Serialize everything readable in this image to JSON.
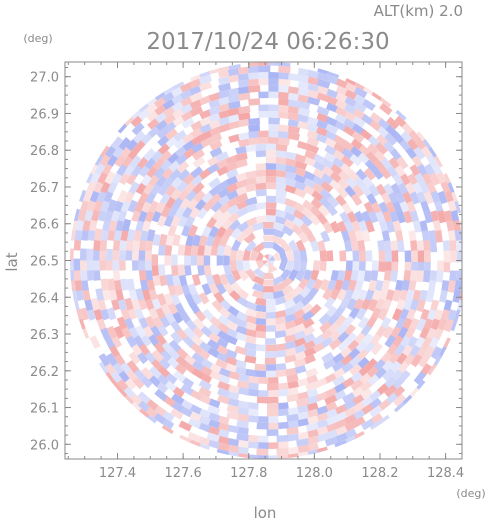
{
  "header": {
    "altitude_label": "ALT(km)  2.0",
    "timestamp": "2017/10/24 06:26:30"
  },
  "chart_data": {
    "type": "heatmap",
    "title": "",
    "xlabel": "lon",
    "ylabel": "lat",
    "x_unit": "(deg)",
    "y_unit": "(deg)",
    "xlim": [
      127.24,
      128.45
    ],
    "ylim": [
      25.96,
      27.04
    ],
    "x_ticks": [
      127.4,
      127.6,
      127.8,
      128.0,
      128.2,
      128.4
    ],
    "x_tick_labels": [
      "127.4",
      "127.6",
      "127.8",
      "128.0",
      "128.2",
      "128.4"
    ],
    "y_ticks": [
      26.0,
      26.1,
      26.2,
      26.3,
      26.4,
      26.5,
      26.6,
      26.7,
      26.8,
      26.9,
      27.0
    ],
    "y_tick_labels": [
      "26.0",
      "26.1",
      "26.2",
      "26.3",
      "26.4",
      "26.5",
      "26.6",
      "26.7",
      "26.8",
      "26.9",
      "27.0"
    ],
    "field": {
      "center_lon": 127.86,
      "center_lat": 26.5,
      "radius_deg_lat": 0.54,
      "colors": {
        "positive": "#f4a8a8",
        "negative": "#a9b4f4",
        "neutral": "#ffffff"
      }
    },
    "grid": false,
    "legend": "none"
  }
}
